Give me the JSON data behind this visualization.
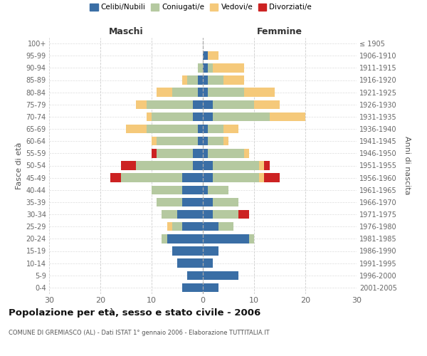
{
  "age_groups": [
    "0-4",
    "5-9",
    "10-14",
    "15-19",
    "20-24",
    "25-29",
    "30-34",
    "35-39",
    "40-44",
    "45-49",
    "50-54",
    "55-59",
    "60-64",
    "65-69",
    "70-74",
    "75-79",
    "80-84",
    "85-89",
    "90-94",
    "95-99",
    "100+"
  ],
  "birth_years": [
    "2001-2005",
    "1996-2000",
    "1991-1995",
    "1986-1990",
    "1981-1985",
    "1976-1980",
    "1971-1975",
    "1966-1970",
    "1961-1965",
    "1956-1960",
    "1951-1955",
    "1946-1950",
    "1941-1945",
    "1936-1940",
    "1931-1935",
    "1926-1930",
    "1921-1925",
    "1916-1920",
    "1911-1915",
    "1906-1910",
    "≤ 1905"
  ],
  "males_celibi": [
    4,
    3,
    5,
    6,
    7,
    4,
    5,
    4,
    4,
    4,
    2,
    2,
    1,
    1,
    2,
    2,
    1,
    1,
    0,
    0,
    0
  ],
  "males_coniugati": [
    0,
    0,
    0,
    0,
    1,
    2,
    3,
    5,
    6,
    12,
    11,
    7,
    8,
    10,
    8,
    9,
    5,
    2,
    1,
    0,
    0
  ],
  "males_vedovi": [
    0,
    0,
    0,
    0,
    0,
    1,
    0,
    0,
    0,
    0,
    0,
    0,
    1,
    4,
    1,
    2,
    3,
    1,
    0,
    0,
    0
  ],
  "males_divorziati": [
    0,
    0,
    0,
    0,
    0,
    0,
    0,
    0,
    0,
    2,
    3,
    1,
    0,
    0,
    0,
    0,
    0,
    0,
    0,
    0,
    0
  ],
  "females_nubili": [
    3,
    7,
    2,
    3,
    9,
    3,
    2,
    2,
    1,
    2,
    2,
    1,
    1,
    1,
    2,
    2,
    1,
    1,
    1,
    1,
    0
  ],
  "females_coniugate": [
    0,
    0,
    0,
    0,
    1,
    3,
    5,
    5,
    4,
    9,
    9,
    7,
    3,
    3,
    11,
    8,
    7,
    3,
    1,
    0,
    0
  ],
  "females_vedove": [
    0,
    0,
    0,
    0,
    0,
    0,
    0,
    0,
    0,
    1,
    1,
    1,
    1,
    3,
    7,
    5,
    6,
    4,
    6,
    2,
    0
  ],
  "females_divorziate": [
    0,
    0,
    0,
    0,
    0,
    0,
    2,
    0,
    0,
    3,
    1,
    0,
    0,
    0,
    0,
    0,
    0,
    0,
    0,
    0,
    0
  ],
  "color_celibi": "#3a6ea5",
  "color_coniugati": "#b5c9a0",
  "color_vedovi": "#f5c97a",
  "color_divorziati": "#cc2222",
  "xlim": 30,
  "title": "Popolazione per età, sesso e stato civile - 2006",
  "subtitle": "COMUNE DI GREMIASCO (AL) - Dati ISTAT 1° gennaio 2006 - Elaborazione TUTTITALIA.IT",
  "ylabel_left": "Fasce di età",
  "ylabel_right": "Anni di nascita",
  "label_maschi": "Maschi",
  "label_femmine": "Femmine",
  "legend_labels": [
    "Celibi/Nubili",
    "Coniugati/e",
    "Vedovi/e",
    "Divorziati/e"
  ]
}
